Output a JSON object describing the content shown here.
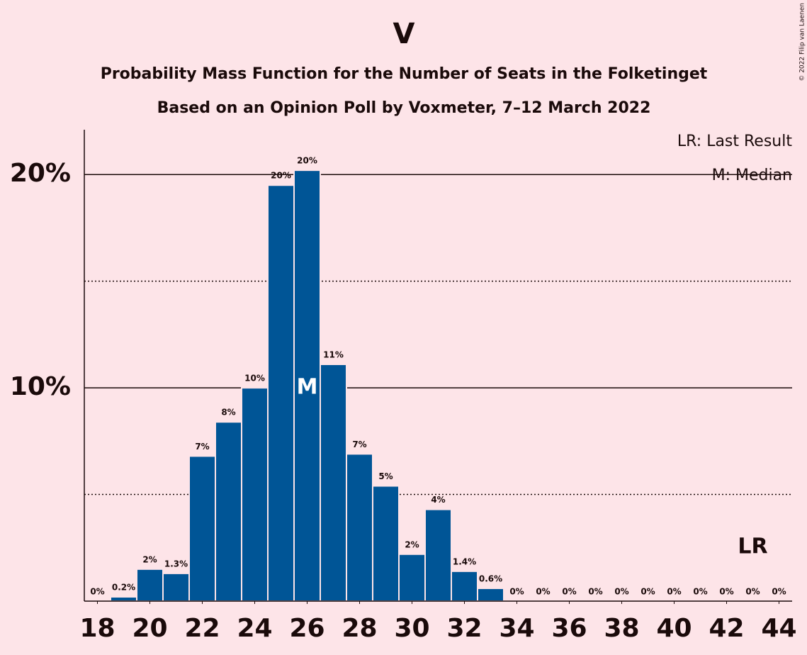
{
  "chart_data": {
    "type": "bar",
    "title": "V",
    "subtitle": "Probability Mass Function for the Number of Seats in the Folketinget",
    "subtitle2": "Based on an Opinion Poll by Voxmeter, 7–12 March 2022",
    "copyright": "© 2022 Filip van Laenen",
    "legend": [
      "LR: Last Result",
      "M: Median"
    ],
    "x": [
      18,
      19,
      20,
      21,
      22,
      23,
      24,
      25,
      26,
      27,
      28,
      29,
      30,
      31,
      32,
      33,
      34,
      35,
      36,
      37,
      38,
      39,
      40,
      41,
      42,
      43,
      44
    ],
    "values": [
      0,
      0.2,
      1.5,
      1.3,
      6.8,
      8.4,
      10.0,
      19.5,
      20.2,
      11.1,
      6.9,
      5.4,
      2.2,
      4.3,
      1.4,
      0.6,
      0,
      0,
      0,
      0,
      0,
      0,
      0,
      0,
      0,
      0,
      0
    ],
    "value_labels": [
      "0%",
      "0.2%",
      "2%",
      "1.3%",
      "7%",
      "8%",
      "10%",
      "20%",
      "20%",
      "11%",
      "7%",
      "5%",
      "2%",
      "4%",
      "1.4%",
      "0.6%",
      "0%",
      "0%",
      "0%",
      "0%",
      "0%",
      "0%",
      "0%",
      "0%",
      "0%",
      "0%",
      "0%"
    ],
    "color": "#005596",
    "xlim": [
      17.5,
      44.5
    ],
    "xticks": [
      18,
      20,
      22,
      24,
      26,
      28,
      30,
      32,
      34,
      36,
      38,
      40,
      42,
      44
    ],
    "ylim": [
      0,
      22.1
    ],
    "yticks": [
      {
        "value": 10,
        "label": "10%"
      },
      {
        "value": 20,
        "label": "20%"
      }
    ],
    "minor_gridlines": [
      5,
      15
    ],
    "median": {
      "label": "M",
      "x": 26
    },
    "last_result": {
      "label": "LR",
      "x": 43
    }
  }
}
